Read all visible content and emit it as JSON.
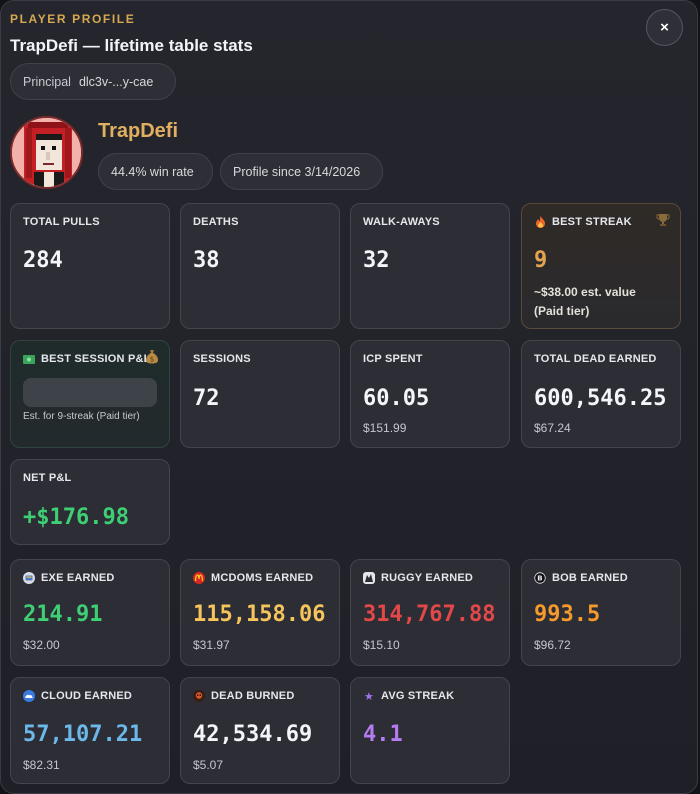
{
  "header": {
    "eyebrow": "PLAYER PROFILE",
    "title": "TrapDefi — lifetime table stats",
    "close_label": "×",
    "principal_label": "Principal",
    "principal_value": "dlc3v-...y-cae"
  },
  "player": {
    "name": "TrapDefi",
    "win_rate": "44.4% win rate",
    "profile_since": "Profile since 3/14/2026"
  },
  "stats": {
    "total_pulls": {
      "label": "TOTAL PULLS",
      "value": "284"
    },
    "deaths": {
      "label": "DEATHS",
      "value": "38"
    },
    "walk_aways": {
      "label": "WALK-AWAYS",
      "value": "32"
    },
    "best_streak": {
      "label": "BEST STREAK",
      "value": "9",
      "sub_line1": "~$38.00 est. value",
      "sub_line2": "(Paid tier)"
    },
    "best_session": {
      "label": "BEST SESSION P&L",
      "sub": "Est. for 9-streak (Paid tier)"
    },
    "sessions": {
      "label": "SESSIONS",
      "value": "72"
    },
    "icp_spent": {
      "label": "ICP SPENT",
      "value": "60.05",
      "sub": "$151.99"
    },
    "total_dead_earned": {
      "label": "TOTAL DEAD EARNED",
      "value": "600,546.25",
      "sub": "$67.24"
    },
    "net_pnl": {
      "label": "NET P&L",
      "value": "+$176.98"
    }
  },
  "tokens": {
    "exe": {
      "label": "EXE EARNED",
      "value": "214.91",
      "sub": "$32.00",
      "icon": "exe-token-icon"
    },
    "mcdoms": {
      "label": "MCDOMS EARNED",
      "value": "115,158.06",
      "sub": "$31.97",
      "icon": "mcdoms-token-icon"
    },
    "ruggy": {
      "label": "RUGGY EARNED",
      "value": "314,767.88",
      "sub": "$15.10",
      "icon": "ruggy-token-icon"
    },
    "bob": {
      "label": "BOB EARNED",
      "value": "993.5",
      "sub": "$96.72",
      "icon": "bob-token-icon"
    },
    "cloud": {
      "label": "CLOUD EARNED",
      "value": "57,107.21",
      "sub": "$82.31",
      "icon": "cloud-token-icon"
    },
    "dead_burned": {
      "label": "DEAD BURNED",
      "value": "42,534.69",
      "sub": "$5.07",
      "icon": "dead-token-icon"
    },
    "avg_streak": {
      "label": "AVG STREAK",
      "value": "4.1",
      "icon": "star-icon"
    }
  },
  "colors": {
    "accent_gold": "#d6a850",
    "positive": "#3ecf74",
    "mcdoms": "#f5c45a",
    "ruggy": "#e24848",
    "bob": "#f59a2b",
    "cloud": "#6cb8ea",
    "avg": "#b47cf0"
  }
}
